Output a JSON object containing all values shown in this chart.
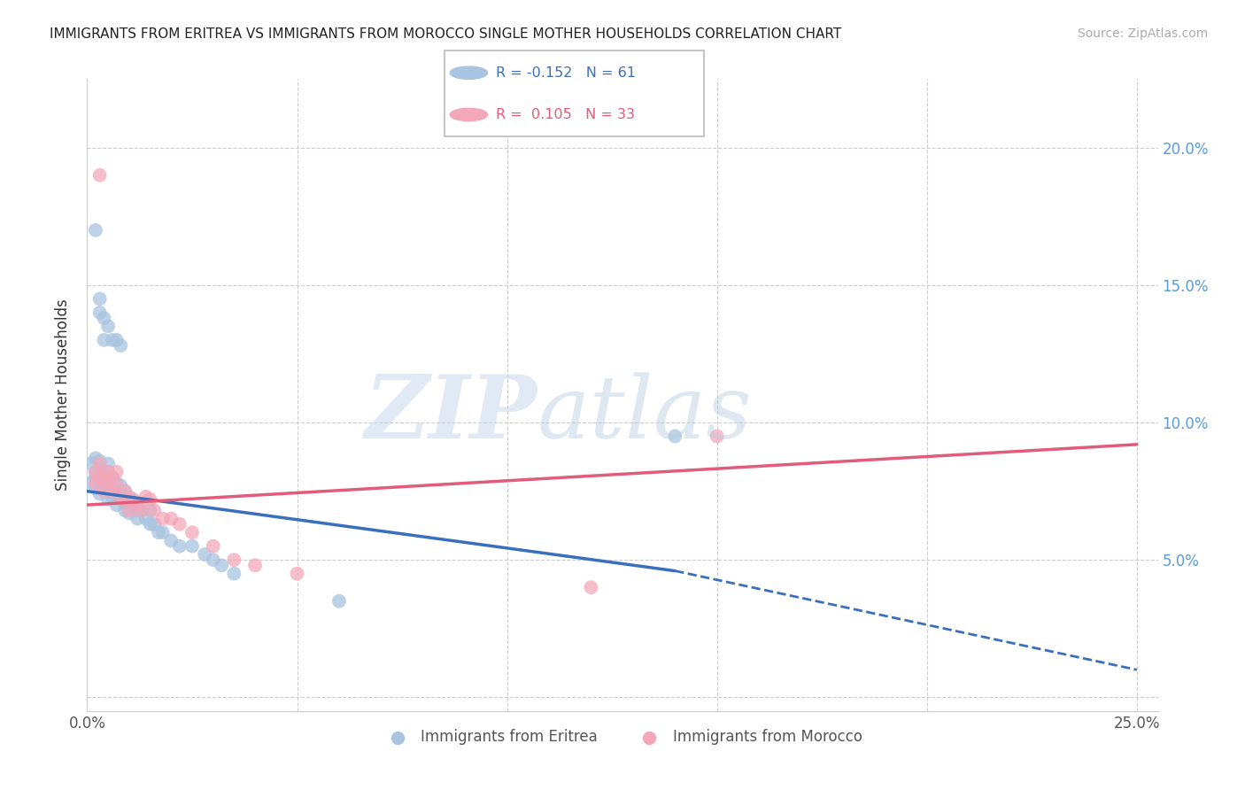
{
  "title": "IMMIGRANTS FROM ERITREA VS IMMIGRANTS FROM MOROCCO SINGLE MOTHER HOUSEHOLDS CORRELATION CHART",
  "source": "Source: ZipAtlas.com",
  "ylabel": "Single Mother Households",
  "legend_R1": "-0.152",
  "legend_N1": "61",
  "legend_R2": "0.105",
  "legend_N2": "33",
  "color_eritrea": "#a8c4e0",
  "color_morocco": "#f4a7b9",
  "line_color_eritrea": "#3a6fbd",
  "line_color_morocco": "#e05c7a",
  "eritrea_x": [
    0.001,
    0.001,
    0.002,
    0.002,
    0.002,
    0.002,
    0.003,
    0.003,
    0.003,
    0.003,
    0.003,
    0.004,
    0.004,
    0.004,
    0.005,
    0.005,
    0.005,
    0.005,
    0.005,
    0.006,
    0.006,
    0.006,
    0.007,
    0.007,
    0.007,
    0.008,
    0.008,
    0.009,
    0.009,
    0.009,
    0.01,
    0.01,
    0.01,
    0.011,
    0.012,
    0.012,
    0.013,
    0.014,
    0.015,
    0.015,
    0.016,
    0.017,
    0.018,
    0.02,
    0.022,
    0.025,
    0.028,
    0.03,
    0.032,
    0.035,
    0.002,
    0.003,
    0.003,
    0.004,
    0.004,
    0.005,
    0.006,
    0.007,
    0.008,
    0.06,
    0.14
  ],
  "eritrea_y": [
    0.085,
    0.078,
    0.087,
    0.082,
    0.08,
    0.076,
    0.086,
    0.083,
    0.08,
    0.077,
    0.074,
    0.082,
    0.079,
    0.076,
    0.085,
    0.082,
    0.078,
    0.075,
    0.072,
    0.08,
    0.076,
    0.073,
    0.078,
    0.074,
    0.07,
    0.077,
    0.073,
    0.075,
    0.071,
    0.068,
    0.073,
    0.07,
    0.067,
    0.07,
    0.068,
    0.065,
    0.068,
    0.065,
    0.068,
    0.063,
    0.063,
    0.06,
    0.06,
    0.057,
    0.055,
    0.055,
    0.052,
    0.05,
    0.048,
    0.045,
    0.17,
    0.145,
    0.14,
    0.138,
    0.13,
    0.135,
    0.13,
    0.13,
    0.128,
    0.035,
    0.095
  ],
  "morocco_x": [
    0.002,
    0.002,
    0.003,
    0.003,
    0.004,
    0.004,
    0.005,
    0.005,
    0.006,
    0.006,
    0.007,
    0.007,
    0.008,
    0.009,
    0.01,
    0.01,
    0.011,
    0.012,
    0.013,
    0.014,
    0.015,
    0.016,
    0.018,
    0.02,
    0.022,
    0.025,
    0.03,
    0.035,
    0.04,
    0.05,
    0.003,
    0.15,
    0.12
  ],
  "morocco_y": [
    0.082,
    0.078,
    0.085,
    0.08,
    0.08,
    0.075,
    0.082,
    0.078,
    0.08,
    0.075,
    0.082,
    0.077,
    0.072,
    0.075,
    0.072,
    0.068,
    0.072,
    0.07,
    0.068,
    0.073,
    0.072,
    0.068,
    0.065,
    0.065,
    0.063,
    0.06,
    0.055,
    0.05,
    0.048,
    0.045,
    0.19,
    0.095,
    0.04
  ],
  "xlim": [
    0.0,
    0.255
  ],
  "ylim": [
    -0.005,
    0.225
  ],
  "xtick_vals": [
    0.0,
    0.05,
    0.1,
    0.15,
    0.2,
    0.25
  ],
  "ytick_vals": [
    0.0,
    0.05,
    0.1,
    0.15,
    0.2
  ],
  "xtick_labels": [
    "0.0%",
    "",
    "",
    "",
    "",
    "25.0%"
  ],
  "right_ytick_labels": [
    "",
    "5.0%",
    "10.0%",
    "15.0%",
    "20.0%"
  ]
}
